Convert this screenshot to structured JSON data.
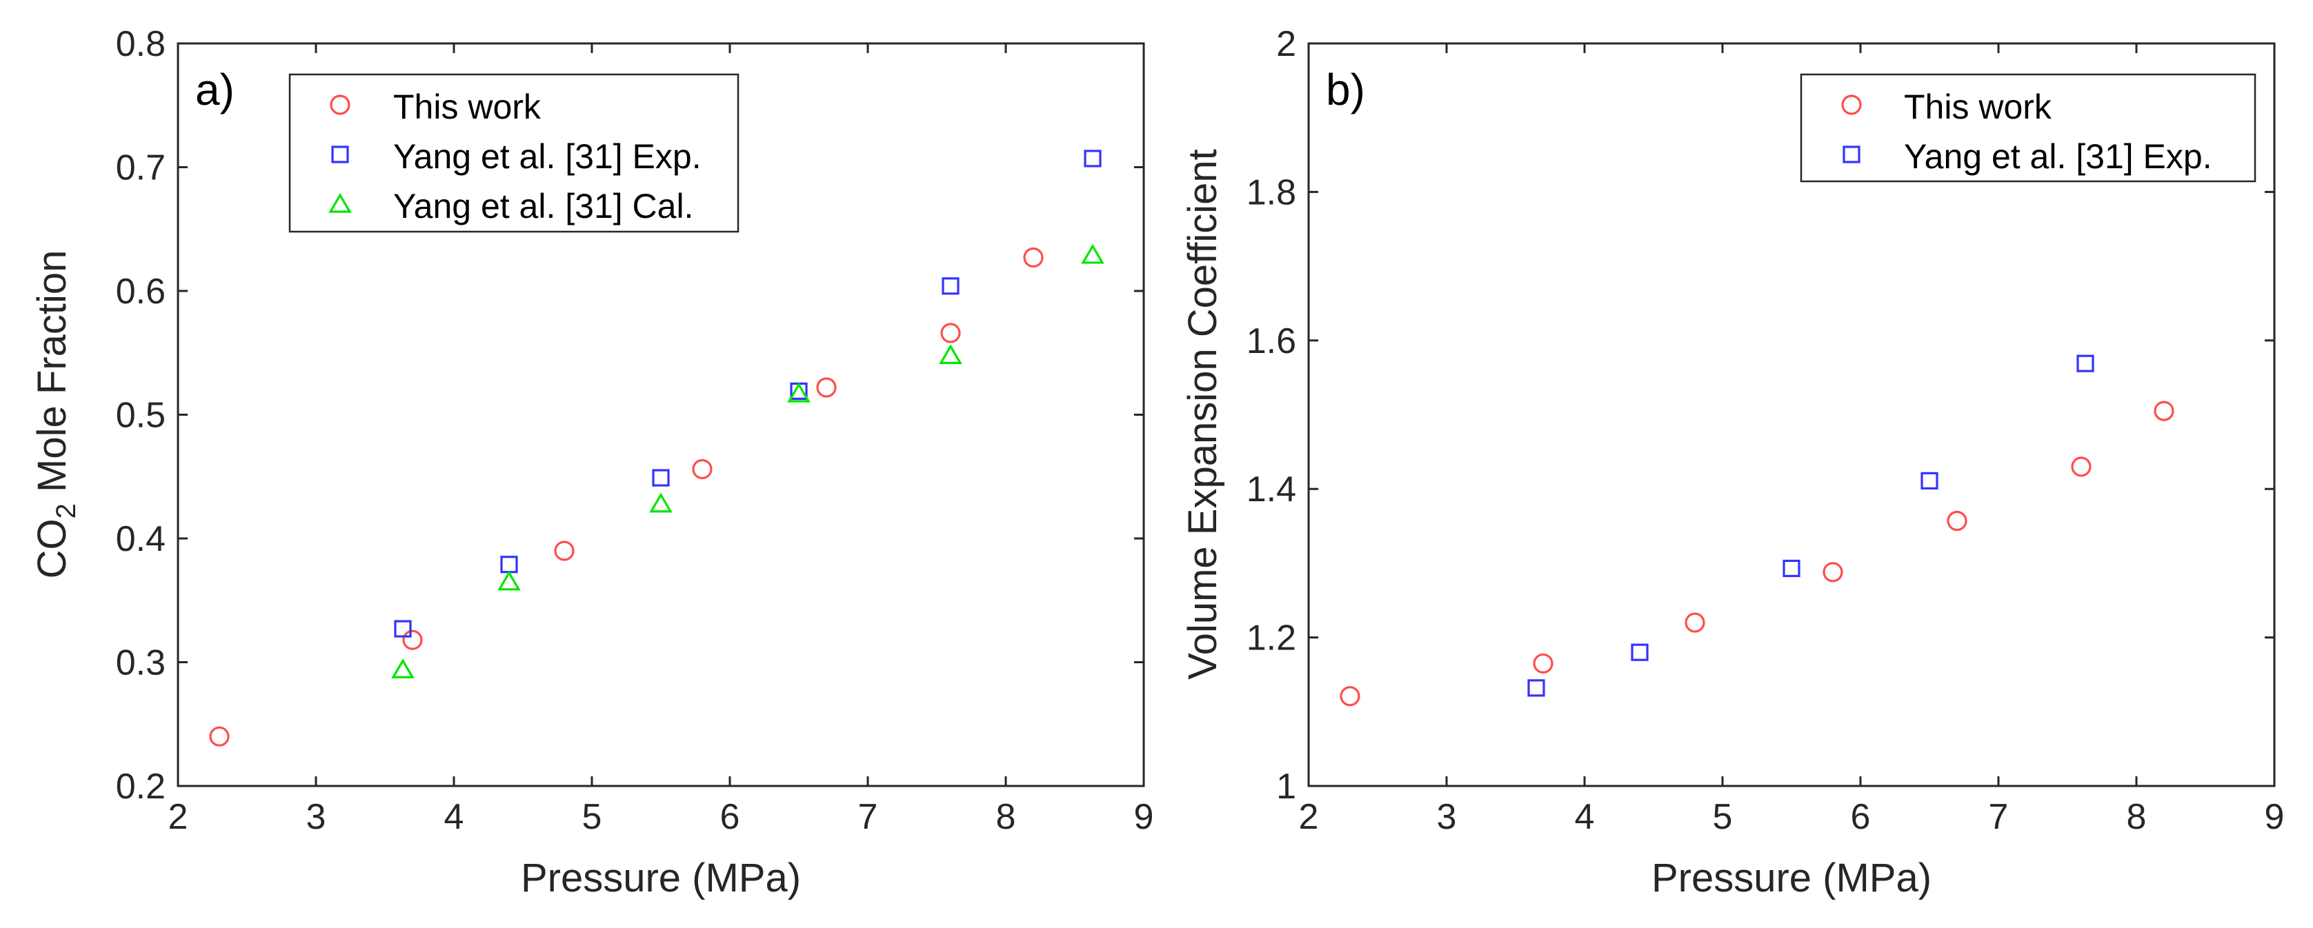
{
  "chart_data": [
    {
      "type": "scatter",
      "panel_label": "a)",
      "title": "",
      "xlabel": "Pressure (MPa)",
      "ylabel": "CO",
      "ylabel_subscript": "2",
      "ylabel_suffix": " Mole Fraction",
      "xlim": [
        2,
        9
      ],
      "ylim": [
        0.2,
        0.8
      ],
      "xticks": [
        2,
        3,
        4,
        5,
        6,
        7,
        8,
        9
      ],
      "yticks": [
        0.2,
        0.3,
        0.4,
        0.5,
        0.6,
        0.7,
        0.8
      ],
      "grid": false,
      "legend_position": "top-left",
      "series": [
        {
          "name": "This work",
          "marker": "circle",
          "color": "#ff4d4d",
          "points": [
            [
              2.3,
              0.24
            ],
            [
              3.7,
              0.318
            ],
            [
              4.8,
              0.39
            ],
            [
              5.8,
              0.456
            ],
            [
              6.7,
              0.522
            ],
            [
              7.6,
              0.566
            ],
            [
              8.2,
              0.627
            ]
          ]
        },
        {
          "name": "Yang et al. [31] Exp.",
          "marker": "square",
          "color": "#3333ff",
          "points": [
            [
              3.63,
              0.327
            ],
            [
              4.4,
              0.379
            ],
            [
              5.5,
              0.449
            ],
            [
              6.5,
              0.519
            ],
            [
              7.6,
              0.604
            ],
            [
              8.63,
              0.707
            ]
          ]
        },
        {
          "name": "Yang et al. [31] Cal.",
          "marker": "triangle",
          "color": "#00e600",
          "points": [
            [
              3.63,
              0.294
            ],
            [
              4.4,
              0.365
            ],
            [
              5.5,
              0.428
            ],
            [
              6.5,
              0.517
            ],
            [
              7.6,
              0.548
            ],
            [
              8.63,
              0.629
            ]
          ]
        }
      ]
    },
    {
      "type": "scatter",
      "panel_label": "b)",
      "title": "",
      "xlabel": "Pressure (MPa)",
      "ylabel": "Volume Expansion Coefficient",
      "xlim": [
        2,
        9
      ],
      "ylim": [
        1,
        2
      ],
      "xticks": [
        2,
        3,
        4,
        5,
        6,
        7,
        8,
        9
      ],
      "yticks": [
        1,
        1.2,
        1.4,
        1.6,
        1.8,
        2
      ],
      "grid": false,
      "legend_position": "top-right",
      "series": [
        {
          "name": "This work",
          "marker": "circle",
          "color": "#ff4d4d",
          "points": [
            [
              2.3,
              1.121
            ],
            [
              3.7,
              1.165
            ],
            [
              4.8,
              1.22
            ],
            [
              5.8,
              1.288
            ],
            [
              6.7,
              1.357
            ],
            [
              7.6,
              1.43
            ],
            [
              8.2,
              1.505
            ]
          ]
        },
        {
          "name": "Yang et al. [31] Exp.",
          "marker": "square",
          "color": "#3333ff",
          "points": [
            [
              3.65,
              1.132
            ],
            [
              4.4,
              1.18
            ],
            [
              5.5,
              1.293
            ],
            [
              6.5,
              1.411
            ],
            [
              7.63,
              1.569
            ]
          ]
        }
      ]
    }
  ]
}
